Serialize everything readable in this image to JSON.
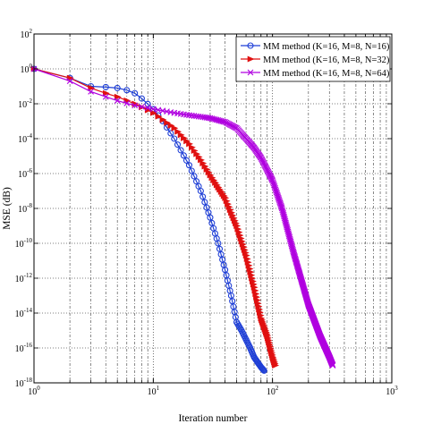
{
  "chart_data": {
    "type": "line",
    "title": "",
    "xlabel": "Iteration number",
    "ylabel": "MSE (dB)",
    "xscale": "log",
    "yscale": "log",
    "xlim": [
      1,
      1000
    ],
    "ylim": [
      1e-18,
      100
    ],
    "x_ticks": [
      {
        "base": "10",
        "exp": "0",
        "value": 1
      },
      {
        "base": "10",
        "exp": "1",
        "value": 10
      },
      {
        "base": "10",
        "exp": "2",
        "value": 100
      },
      {
        "base": "10",
        "exp": "3",
        "value": 1000
      }
    ],
    "y_ticks": [
      {
        "base": "10",
        "exp": "2",
        "value": 100.0
      },
      {
        "base": "10",
        "exp": "0",
        "value": 1.0
      },
      {
        "base": "10",
        "exp": "-2",
        "value": 0.01
      },
      {
        "base": "10",
        "exp": "-4",
        "value": 0.0001
      },
      {
        "base": "10",
        "exp": "-6",
        "value": 1e-06
      },
      {
        "base": "10",
        "exp": "-8",
        "value": 1e-08
      },
      {
        "base": "10",
        "exp": "-10",
        "value": 1e-10
      },
      {
        "base": "10",
        "exp": "-12",
        "value": 1e-12
      },
      {
        "base": "10",
        "exp": "-14",
        "value": 1e-14
      },
      {
        "base": "10",
        "exp": "-16",
        "value": 1e-16
      },
      {
        "base": "10",
        "exp": "-18",
        "value": 1e-18
      }
    ],
    "grid": "dotted (decades)",
    "legend_position": "top-right",
    "series": [
      {
        "name": "MM method (K=16, M=8, N=16)",
        "color": "#1f3fd6",
        "marker": "circle",
        "x": [
          1,
          2,
          3,
          4,
          5,
          6,
          7,
          8,
          10,
          12,
          15,
          20,
          25,
          30,
          35,
          40,
          45,
          50,
          55,
          60,
          65,
          70,
          75,
          80,
          85
        ],
        "y": [
          1,
          0.3,
          0.1,
          0.09,
          0.08,
          0.06,
          0.04,
          0.02,
          0.005,
          0.001,
          0.0001,
          3e-06,
          1e-07,
          3e-09,
          1e-10,
          3e-12,
          1e-13,
          3e-15,
          1e-15,
          3e-16,
          1e-16,
          3e-17,
          1.5e-17,
          8e-18,
          5e-18
        ]
      },
      {
        "name": "MM method (K=16, M=8, N=32)",
        "color": "#e01010",
        "marker": "triangle-right",
        "x": [
          1,
          2,
          3,
          4,
          5,
          7,
          10,
          15,
          20,
          25,
          30,
          40,
          50,
          60,
          70,
          80,
          90,
          100,
          105
        ],
        "y": [
          1,
          0.3,
          0.08,
          0.04,
          0.025,
          0.01,
          0.003,
          0.0004,
          5e-05,
          6e-06,
          8e-07,
          4e-08,
          1e-09,
          2e-11,
          3e-13,
          5e-15,
          5e-16,
          3e-17,
          1e-17
        ]
      },
      {
        "name": "MM method (K=16, M=8, N=64)",
        "color": "#b000e0",
        "marker": "x",
        "x": [
          1,
          2,
          3,
          4,
          5,
          7,
          10,
          15,
          20,
          25,
          30,
          40,
          50,
          60,
          70,
          80,
          100,
          120,
          150,
          200,
          250,
          300,
          320
        ],
        "y": [
          1,
          0.2,
          0.05,
          0.025,
          0.015,
          0.008,
          0.005,
          0.003,
          0.0022,
          0.0018,
          0.0015,
          0.0009,
          0.0004,
          0.0001,
          3e-05,
          8e-06,
          4e-07,
          1e-08,
          3e-11,
          3e-14,
          5e-16,
          3e-17,
          1e-17
        ]
      }
    ]
  }
}
